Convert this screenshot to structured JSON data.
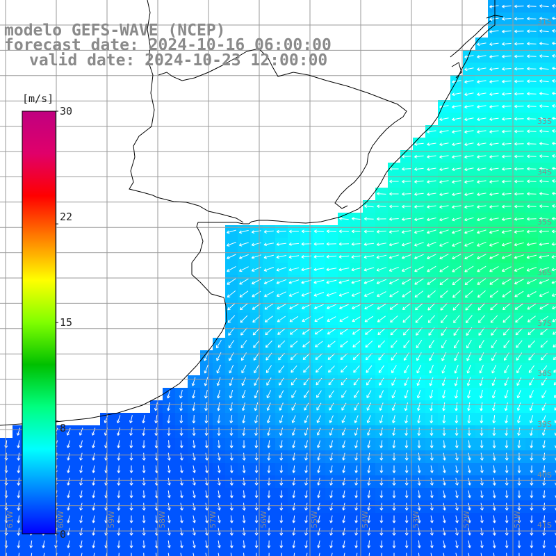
{
  "title": {
    "line1": "modelo GEFS-WAVE (NCEP)",
    "line2": "forecast date: 2024-10-16 06:00:00",
    "line3": "valid date: 2024-10-23 12:00:00"
  },
  "colorbar": {
    "unit": "[m/s]",
    "ticks": [
      "30",
      "22",
      "15",
      "8",
      "0"
    ],
    "tick_values": [
      30,
      22,
      15,
      8,
      0
    ],
    "min": 0,
    "max": 30,
    "colors": [
      "#0000ff",
      "#0080ff",
      "#00ffff",
      "#00ff80",
      "#00c000",
      "#80ff00",
      "#ffff00",
      "#ff8000",
      "#ff0000",
      "#e0006a",
      "#c00080"
    ]
  },
  "map": {
    "lat_labels": [
      "31S",
      "33S",
      "34S",
      "35S",
      "36S",
      "37S",
      "38S",
      "39S",
      "40S",
      "41S"
    ],
    "lon_labels": [
      "61W",
      "60W",
      "59W",
      "58W",
      "57W",
      "56W",
      "55W",
      "54W",
      "53W",
      "52W",
      "51W"
    ],
    "colors": {
      "land": "#ffffff",
      "grid": "#9a9a9a",
      "coast": "#000000",
      "arrow": "#ffffff",
      "title": "#8a8a8a"
    }
  }
}
